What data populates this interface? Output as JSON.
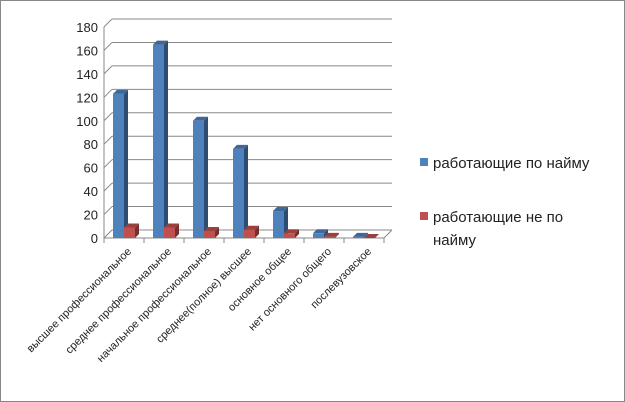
{
  "chart_data": {
    "type": "bar",
    "title": "",
    "xlabel": "",
    "ylabel": "",
    "ylim": [
      0,
      180
    ],
    "yticks": [
      0,
      20,
      40,
      60,
      80,
      100,
      120,
      140,
      160,
      180
    ],
    "grid": true,
    "legend_placement": "right",
    "categories": [
      "высшее профессиональное",
      "среднее профессиональное",
      "начальное профессиональное",
      "среднее(полное) высшее",
      "основное общее",
      "нет основного общего",
      "послевузовское"
    ],
    "series": [
      {
        "name": "работающие по найму",
        "color": "#4F81BD",
        "values": [
          123,
          165,
          100,
          76,
          23,
          4,
          1
        ]
      },
      {
        "name": "работающие не по найму",
        "color": "#C0504D",
        "values": [
          9,
          9,
          6,
          7,
          4,
          1,
          0
        ]
      }
    ]
  }
}
